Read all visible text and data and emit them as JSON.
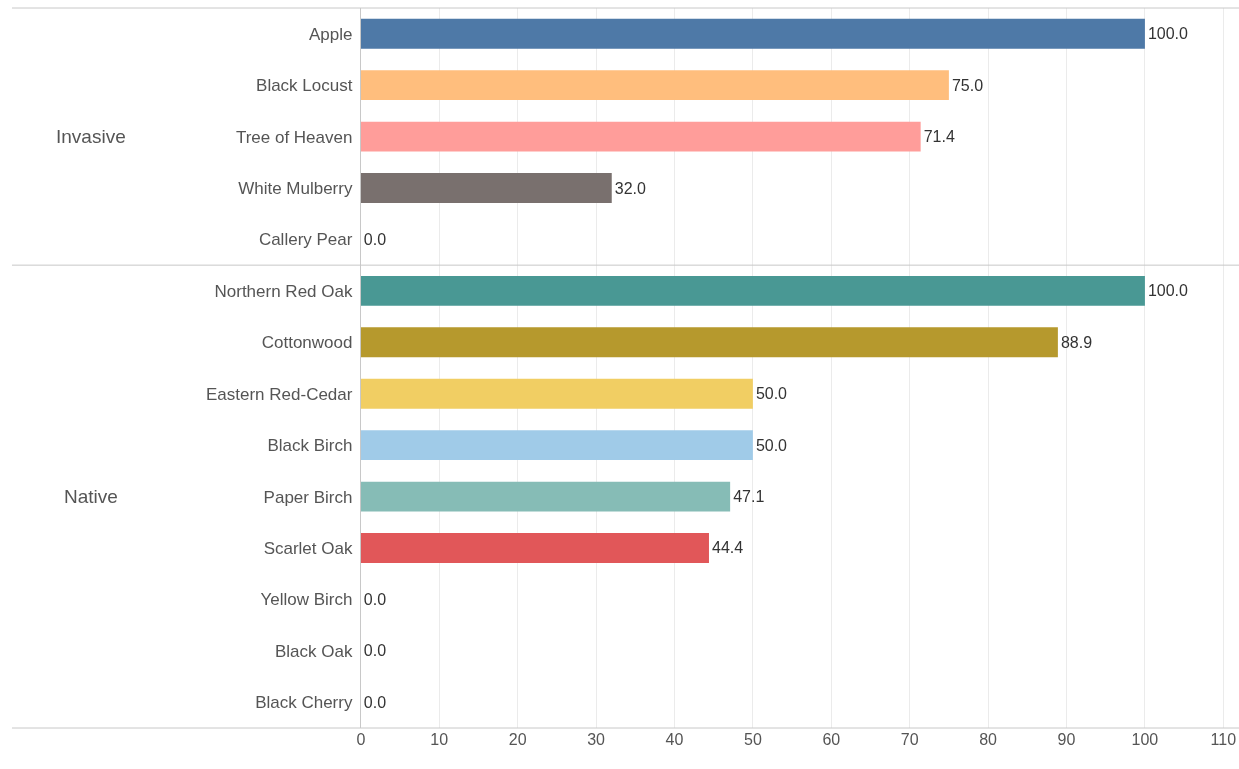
{
  "chart_data": [
    {
      "type": "bar",
      "orientation": "horizontal",
      "ylabel": "Invasive",
      "categories": [
        "Apple",
        "Black Locust",
        "Tree of Heaven",
        "White Mulberry",
        "Callery Pear"
      ],
      "values": [
        100.0,
        75.0,
        71.4,
        32.0,
        0.0
      ],
      "value_labels": [
        "100.0",
        "75.0",
        "71.4",
        "32.0",
        "0.0"
      ],
      "colors": [
        "#4e79a7",
        "#ffbe7d",
        "#ff9d9a",
        "#79706e",
        null
      ],
      "xlim": [
        0,
        112
      ],
      "xticks": [
        0,
        10,
        20,
        30,
        40,
        50,
        60,
        70,
        80,
        90,
        100,
        110
      ],
      "grid": "x",
      "legend": false,
      "tick_labels": "y"
    },
    {
      "type": "bar",
      "orientation": "horizontal",
      "ylabel": "Native",
      "categories": [
        "Northern Red Oak",
        "Cottonwood",
        "Eastern Red-Cedar",
        "Black Birch",
        "Paper Birch",
        "Scarlet Oak",
        "Yellow Birch",
        "Black Oak",
        "Black Cherry"
      ],
      "values": [
        100.0,
        88.9,
        50.0,
        50.0,
        47.1,
        44.4,
        0.0,
        0.0,
        0.0
      ],
      "value_labels": [
        "100.0",
        "88.9",
        "50.0",
        "50.0",
        "47.1",
        "44.4",
        "0.0",
        "0.0",
        "0.0"
      ],
      "colors": [
        "#499894",
        "#b6992d",
        "#f1ce63",
        "#a0cbe8",
        "#86bcb6",
        "#e15759",
        null,
        null,
        null
      ],
      "xlim": [
        0,
        112
      ],
      "xticks": [
        0,
        10,
        20,
        30,
        40,
        50,
        60,
        70,
        80,
        90,
        100,
        110
      ],
      "grid": "x",
      "legend": false
    }
  ]
}
